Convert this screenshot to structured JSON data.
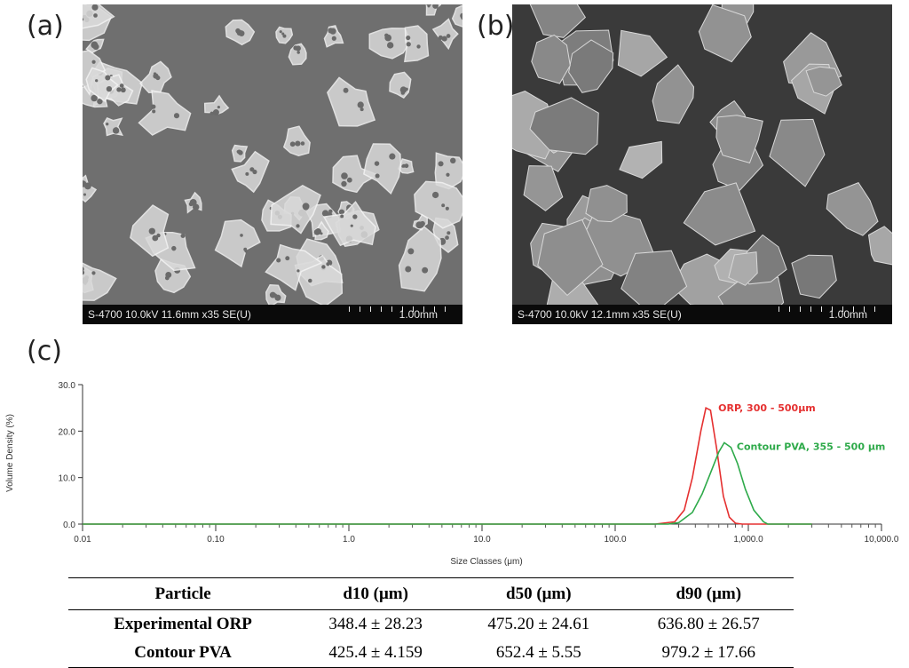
{
  "panels": {
    "a": {
      "label": "(a)",
      "info": "S-4700 10.0kV 11.6mm x35 SE(U)",
      "scale": "1.00mm"
    },
    "b": {
      "label": "(b)",
      "info": "S-4700 10.0kV 12.1mm x35 SE(U)",
      "scale": "1.00mm"
    },
    "c": {
      "label": "(c)"
    }
  },
  "chart_data": {
    "type": "line",
    "x_scale": "log",
    "xlabel": "Size Classes (μm)",
    "ylabel": "Volume Density (%)",
    "xlim": [
      0.01,
      10000
    ],
    "ylim": [
      0,
      30
    ],
    "x_ticks": [
      "0.01",
      "0.10",
      "1.0",
      "10.0",
      "100.0",
      "1,000.0",
      "10,000.0"
    ],
    "y_ticks": [
      "0.0",
      "10.0",
      "20.0",
      "30.0"
    ],
    "grid": false,
    "series": [
      {
        "name": "ORP, 300 - 500μm",
        "color": "#e53030",
        "x": [
          0.01,
          200,
          280,
          330,
          380,
          440,
          480,
          520,
          580,
          650,
          720,
          800,
          900,
          3000
        ],
        "y": [
          0,
          0,
          0.5,
          3,
          10,
          20,
          25,
          24.5,
          16,
          6,
          1.5,
          0.2,
          0,
          0
        ]
      },
      {
        "name": "Contour PVA, 355 - 500 μm",
        "color": "#2eaa4a",
        "x": [
          0.01,
          250,
          300,
          380,
          450,
          520,
          600,
          660,
          740,
          830,
          950,
          1100,
          1300,
          1400,
          3000
        ],
        "y": [
          0,
          0,
          0.3,
          2.5,
          6.5,
          11,
          15.5,
          17.5,
          16.5,
          13,
          7.5,
          3,
          0.5,
          0,
          0
        ]
      }
    ]
  },
  "table": {
    "headers": [
      "Particle",
      "d10 (μm)",
      "d50 (μm)",
      "d90 (μm)"
    ],
    "rows": [
      [
        "Experimental ORP",
        "348.4 ± 28.23",
        "475.20 ± 24.61",
        "636.80 ± 26.57"
      ],
      [
        "Contour PVA",
        "425.4 ± 4.159",
        "652.4 ± 5.55",
        "979.2 ± 17.66"
      ]
    ]
  }
}
